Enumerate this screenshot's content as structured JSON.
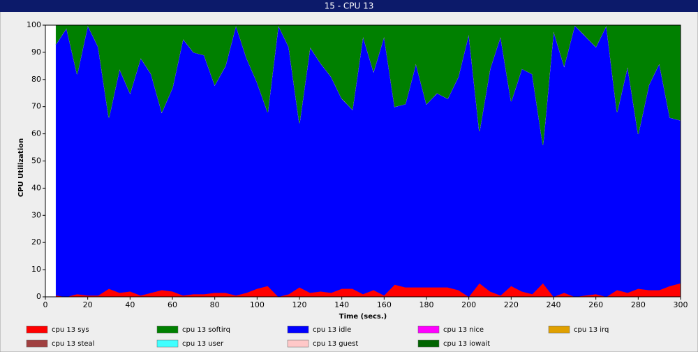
{
  "chart_data": {
    "type": "area",
    "title": "15 - CPU 13",
    "xlabel": "Time (secs.)",
    "ylabel": "CPU Utilization",
    "x": [
      5,
      10,
      15,
      20,
      25,
      30,
      35,
      40,
      45,
      50,
      55,
      60,
      65,
      70,
      75,
      80,
      85,
      90,
      95,
      100,
      105,
      110,
      115,
      120,
      125,
      130,
      135,
      140,
      145,
      150,
      155,
      160,
      165,
      170,
      175,
      180,
      185,
      190,
      195,
      200,
      205,
      210,
      215,
      220,
      225,
      230,
      235,
      240,
      245,
      250,
      255,
      260,
      265,
      270,
      275,
      280,
      285,
      290,
      295,
      300
    ],
    "xlim": [
      0,
      300
    ],
    "xticks": [
      0,
      20,
      40,
      60,
      80,
      100,
      120,
      140,
      160,
      180,
      200,
      220,
      240,
      260,
      280,
      300
    ],
    "ylim": [
      0,
      100
    ],
    "yticks": [
      0,
      10,
      20,
      30,
      40,
      50,
      60,
      70,
      80,
      90,
      100
    ],
    "series": [
      {
        "name": "cpu 13 sys",
        "color": "#ff0000",
        "values": [
          0.5,
          0,
          1,
          0.5,
          0.5,
          3,
          1.5,
          2,
          0.5,
          1.5,
          2.5,
          2,
          0.5,
          1,
          1,
          1.5,
          1.5,
          0.5,
          1.5,
          3,
          4,
          0,
          1,
          3.5,
          1.5,
          2,
          1.5,
          3,
          3,
          1,
          2.5,
          0.5,
          4.5,
          3.5,
          3.5,
          3.5,
          3.5,
          3.5,
          2.5,
          0,
          5,
          2,
          0.5,
          4,
          2,
          1,
          5,
          0,
          1.5,
          0,
          0.5,
          1,
          0,
          2.5,
          1.5,
          3,
          2.5,
          2.5,
          4,
          5
        ]
      },
      {
        "name": "cpu 13 softirq",
        "color": "#008000",
        "values": [
          7,
          1,
          18,
          0,
          8,
          34,
          16,
          25,
          12,
          18,
          32,
          23,
          5,
          10,
          11,
          22,
          15,
          0,
          12,
          21,
          32,
          0,
          8,
          36,
          8,
          14,
          19,
          27,
          31,
          4,
          17,
          4,
          30,
          29,
          14,
          29,
          25,
          27,
          19,
          3,
          39,
          16,
          4,
          28,
          16,
          18,
          44,
          2,
          15,
          0,
          4,
          8,
          0,
          32,
          15,
          40,
          22,
          14,
          34,
          35
        ]
      },
      {
        "name": "cpu 13 idle",
        "color": "#0000ff",
        "values": [
          92.5,
          99,
          81,
          99.5,
          91.5,
          63,
          82.5,
          73,
          87.5,
          80.5,
          65.5,
          75,
          94.5,
          89,
          88,
          76.5,
          83.5,
          99.5,
          86.5,
          76,
          64,
          100,
          91,
          60.5,
          90.5,
          84,
          79.5,
          70,
          66,
          95,
          80.5,
          95.5,
          65.5,
          67.5,
          82.5,
          67.5,
          71.5,
          69.5,
          78.5,
          97,
          56,
          82,
          95.5,
          68,
          82,
          81,
          51,
          98,
          83.5,
          100,
          95.5,
          91,
          100,
          65.5,
          83.5,
          57,
          75.5,
          83.5,
          62,
          60
        ]
      },
      {
        "name": "cpu 13 nice",
        "color": "#ff00ff",
        "values": [
          0,
          0,
          0,
          0,
          0,
          0,
          0,
          0,
          0,
          0,
          0,
          0,
          0,
          0,
          0,
          0,
          0,
          0,
          0,
          0,
          0,
          0,
          0,
          0,
          0,
          0,
          0,
          0,
          0,
          0,
          0,
          0,
          0,
          0,
          0,
          0,
          0,
          0,
          0,
          0,
          0,
          0,
          0,
          0,
          0,
          0,
          0,
          0,
          0,
          0,
          0,
          0,
          0,
          0,
          0,
          0,
          0,
          0,
          0,
          0
        ]
      },
      {
        "name": "cpu 13 irq",
        "color": "#e0a000",
        "values": [
          0,
          0,
          0,
          0,
          0,
          0,
          0,
          0,
          0,
          0,
          0,
          0,
          0,
          0,
          0,
          0,
          0,
          0,
          0,
          0,
          0,
          0,
          0,
          0,
          0,
          0,
          0,
          0,
          0,
          0,
          0,
          0,
          0,
          0,
          0,
          0,
          0,
          0,
          0,
          0,
          0,
          0,
          0,
          0,
          0,
          0,
          0,
          0,
          0,
          0,
          0,
          0,
          0,
          0,
          0,
          0,
          0,
          0,
          0,
          0
        ]
      },
      {
        "name": "cpu 13 steal",
        "color": "#a04040",
        "values": [
          0,
          0,
          0,
          0,
          0,
          0,
          0,
          0,
          0,
          0,
          0,
          0,
          0,
          0,
          0,
          0,
          0,
          0,
          0,
          0,
          0,
          0,
          0,
          0,
          0,
          0,
          0,
          0,
          0,
          0,
          0,
          0,
          0,
          0,
          0,
          0,
          0,
          0,
          0,
          0,
          0,
          0,
          0,
          0,
          0,
          0,
          0,
          0,
          0,
          0,
          0,
          0,
          0,
          0,
          0,
          0,
          0,
          0,
          0,
          0
        ]
      },
      {
        "name": "cpu 13 user",
        "color": "#40ffff",
        "values": [
          0,
          0,
          0,
          0,
          0,
          0,
          0,
          0,
          0,
          0,
          0,
          0,
          0,
          0,
          0,
          0,
          0,
          0,
          0,
          0,
          0,
          0,
          0,
          0,
          0,
          0,
          0,
          0,
          0,
          0,
          0,
          0,
          0,
          0,
          0,
          0,
          0,
          0,
          0,
          0,
          0,
          0,
          0,
          0,
          0,
          0,
          0,
          0,
          0,
          0,
          0,
          0,
          0,
          0,
          0,
          0,
          0,
          0,
          0,
          0
        ]
      },
      {
        "name": "cpu 13 guest",
        "color": "#ffc8c8",
        "values": [
          0,
          0,
          0,
          0,
          0,
          0,
          0,
          0,
          0,
          0,
          0,
          0,
          0,
          0,
          0,
          0,
          0,
          0,
          0,
          0,
          0,
          0,
          0,
          0,
          0,
          0,
          0,
          0,
          0,
          0,
          0,
          0,
          0,
          0,
          0,
          0,
          0,
          0,
          0,
          0,
          0,
          0,
          0,
          0,
          0,
          0,
          0,
          0,
          0,
          0,
          0,
          0,
          0,
          0,
          0,
          0,
          0,
          0,
          0,
          0
        ]
      },
      {
        "name": "cpu 13 iowait",
        "color": "#006400",
        "values": [
          0,
          0,
          0,
          0,
          0,
          0,
          0,
          0,
          0,
          0,
          0,
          0,
          0,
          0,
          0,
          0,
          0,
          0,
          0,
          0,
          0,
          0,
          0,
          0,
          0,
          0,
          0,
          0,
          0,
          0,
          0,
          0,
          0,
          0,
          0,
          0,
          0,
          0,
          0,
          0,
          0,
          0,
          0,
          0,
          0,
          0,
          0,
          0,
          0,
          0,
          0,
          0,
          0,
          0,
          0,
          0,
          0,
          0,
          0,
          0
        ]
      }
    ]
  }
}
